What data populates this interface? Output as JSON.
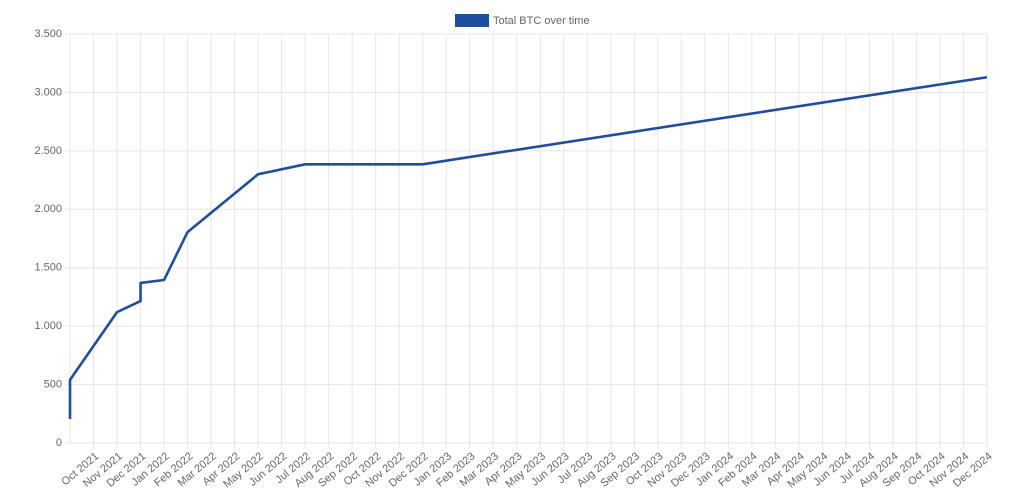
{
  "chart_data": {
    "type": "line",
    "x": [
      "2021-09",
      "2021-09",
      "2021-11",
      "2021-12",
      "2021-12",
      "2022-01",
      "2022-02",
      "2022-05",
      "2022-07",
      "2022-12",
      "2024-12"
    ],
    "series": [
      {
        "name": "Total BTC over time",
        "color": "#1e4f9e",
        "values": [
          205,
          540,
          1120,
          1215,
          1370,
          1395,
          1805,
          2300,
          2385,
          2385,
          3130
        ]
      }
    ],
    "xlim": [
      "2021-09",
      "2024-12"
    ],
    "xticks": [
      {
        "value": "2021-10",
        "label": "Oct 2021"
      },
      {
        "value": "2021-11",
        "label": "Nov 2021"
      },
      {
        "value": "2021-12",
        "label": "Dec 2021"
      },
      {
        "value": "2022-01",
        "label": "Jan 2022"
      },
      {
        "value": "2022-02",
        "label": "Feb 2022"
      },
      {
        "value": "2022-03",
        "label": "Mar 2022"
      },
      {
        "value": "2022-04",
        "label": "Apr 2022"
      },
      {
        "value": "2022-05",
        "label": "May 2022"
      },
      {
        "value": "2022-06",
        "label": "Jun 2022"
      },
      {
        "value": "2022-07",
        "label": "Jul 2022"
      },
      {
        "value": "2022-08",
        "label": "Aug 2022"
      },
      {
        "value": "2022-09",
        "label": "Sep 2022"
      },
      {
        "value": "2022-10",
        "label": "Oct 2022"
      },
      {
        "value": "2022-11",
        "label": "Nov 2022"
      },
      {
        "value": "2022-12",
        "label": "Dec 2022"
      },
      {
        "value": "2023-01",
        "label": "Jan 2023"
      },
      {
        "value": "2023-02",
        "label": "Feb 2023"
      },
      {
        "value": "2023-03",
        "label": "Mar 2023"
      },
      {
        "value": "2023-04",
        "label": "Apr 2023"
      },
      {
        "value": "2023-05",
        "label": "May 2023"
      },
      {
        "value": "2023-06",
        "label": "Jun 2023"
      },
      {
        "value": "2023-07",
        "label": "Jul 2023"
      },
      {
        "value": "2023-08",
        "label": "Aug 2023"
      },
      {
        "value": "2023-09",
        "label": "Sep 2023"
      },
      {
        "value": "2023-10",
        "label": "Oct 2023"
      },
      {
        "value": "2023-11",
        "label": "Nov 2023"
      },
      {
        "value": "2023-12",
        "label": "Dec 2023"
      },
      {
        "value": "2024-01",
        "label": "Jan 2024"
      },
      {
        "value": "2024-02",
        "label": "Feb 2024"
      },
      {
        "value": "2024-03",
        "label": "Mar 2024"
      },
      {
        "value": "2024-04",
        "label": "Apr 2024"
      },
      {
        "value": "2024-05",
        "label": "May 2024"
      },
      {
        "value": "2024-06",
        "label": "Jun 2024"
      },
      {
        "value": "2024-07",
        "label": "Jul 2024"
      },
      {
        "value": "2024-08",
        "label": "Aug 2024"
      },
      {
        "value": "2024-09",
        "label": "Sep 2024"
      },
      {
        "value": "2024-10",
        "label": "Oct 2024"
      },
      {
        "value": "2024-11",
        "label": "Nov 2024"
      },
      {
        "value": "2024-12",
        "label": "Dec 2024"
      }
    ],
    "ylim": [
      0,
      3500
    ],
    "yticks": [
      0,
      500,
      {
        "value": 1000,
        "label": "1.000"
      },
      {
        "value": 1500,
        "label": "1.500"
      },
      {
        "value": 2000,
        "label": "2.000"
      },
      {
        "value": 2500,
        "label": "2.500"
      },
      {
        "value": 3000,
        "label": "3.000"
      },
      {
        "value": 3500,
        "label": "3.500"
      }
    ],
    "grid": true,
    "legend": "top"
  }
}
